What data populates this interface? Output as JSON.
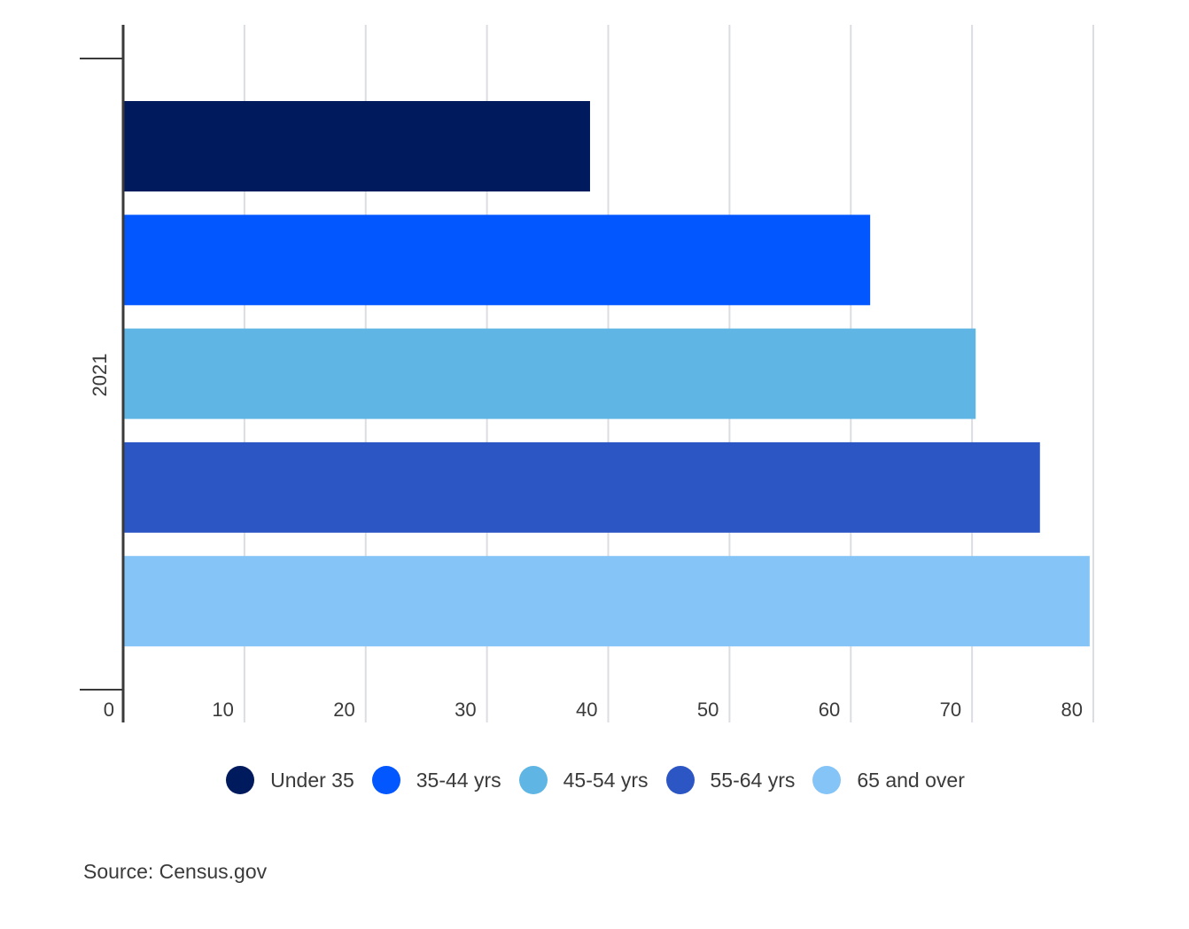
{
  "chart_data": {
    "type": "bar",
    "orientation": "horizontal",
    "categories": [
      "2021"
    ],
    "series": [
      {
        "name": "Under 35",
        "values": [
          38.5
        ],
        "color": "#001a5e"
      },
      {
        "name": "35-44 yrs",
        "values": [
          61.6
        ],
        "color": "#0257ff"
      },
      {
        "name": "45-54 yrs",
        "values": [
          70.3
        ],
        "color": "#5fb6e5"
      },
      {
        "name": "55-64 yrs",
        "values": [
          75.6
        ],
        "color": "#2d56c5"
      },
      {
        "name": "65 and over",
        "values": [
          79.7
        ],
        "color": "#85c4f7"
      }
    ],
    "xlim": [
      0,
      80
    ],
    "xticks": [
      0,
      10,
      20,
      30,
      40,
      50,
      60,
      70,
      80
    ],
    "grid": "vertical",
    "legend_position": "bottom"
  },
  "source": "Source: Census.gov"
}
